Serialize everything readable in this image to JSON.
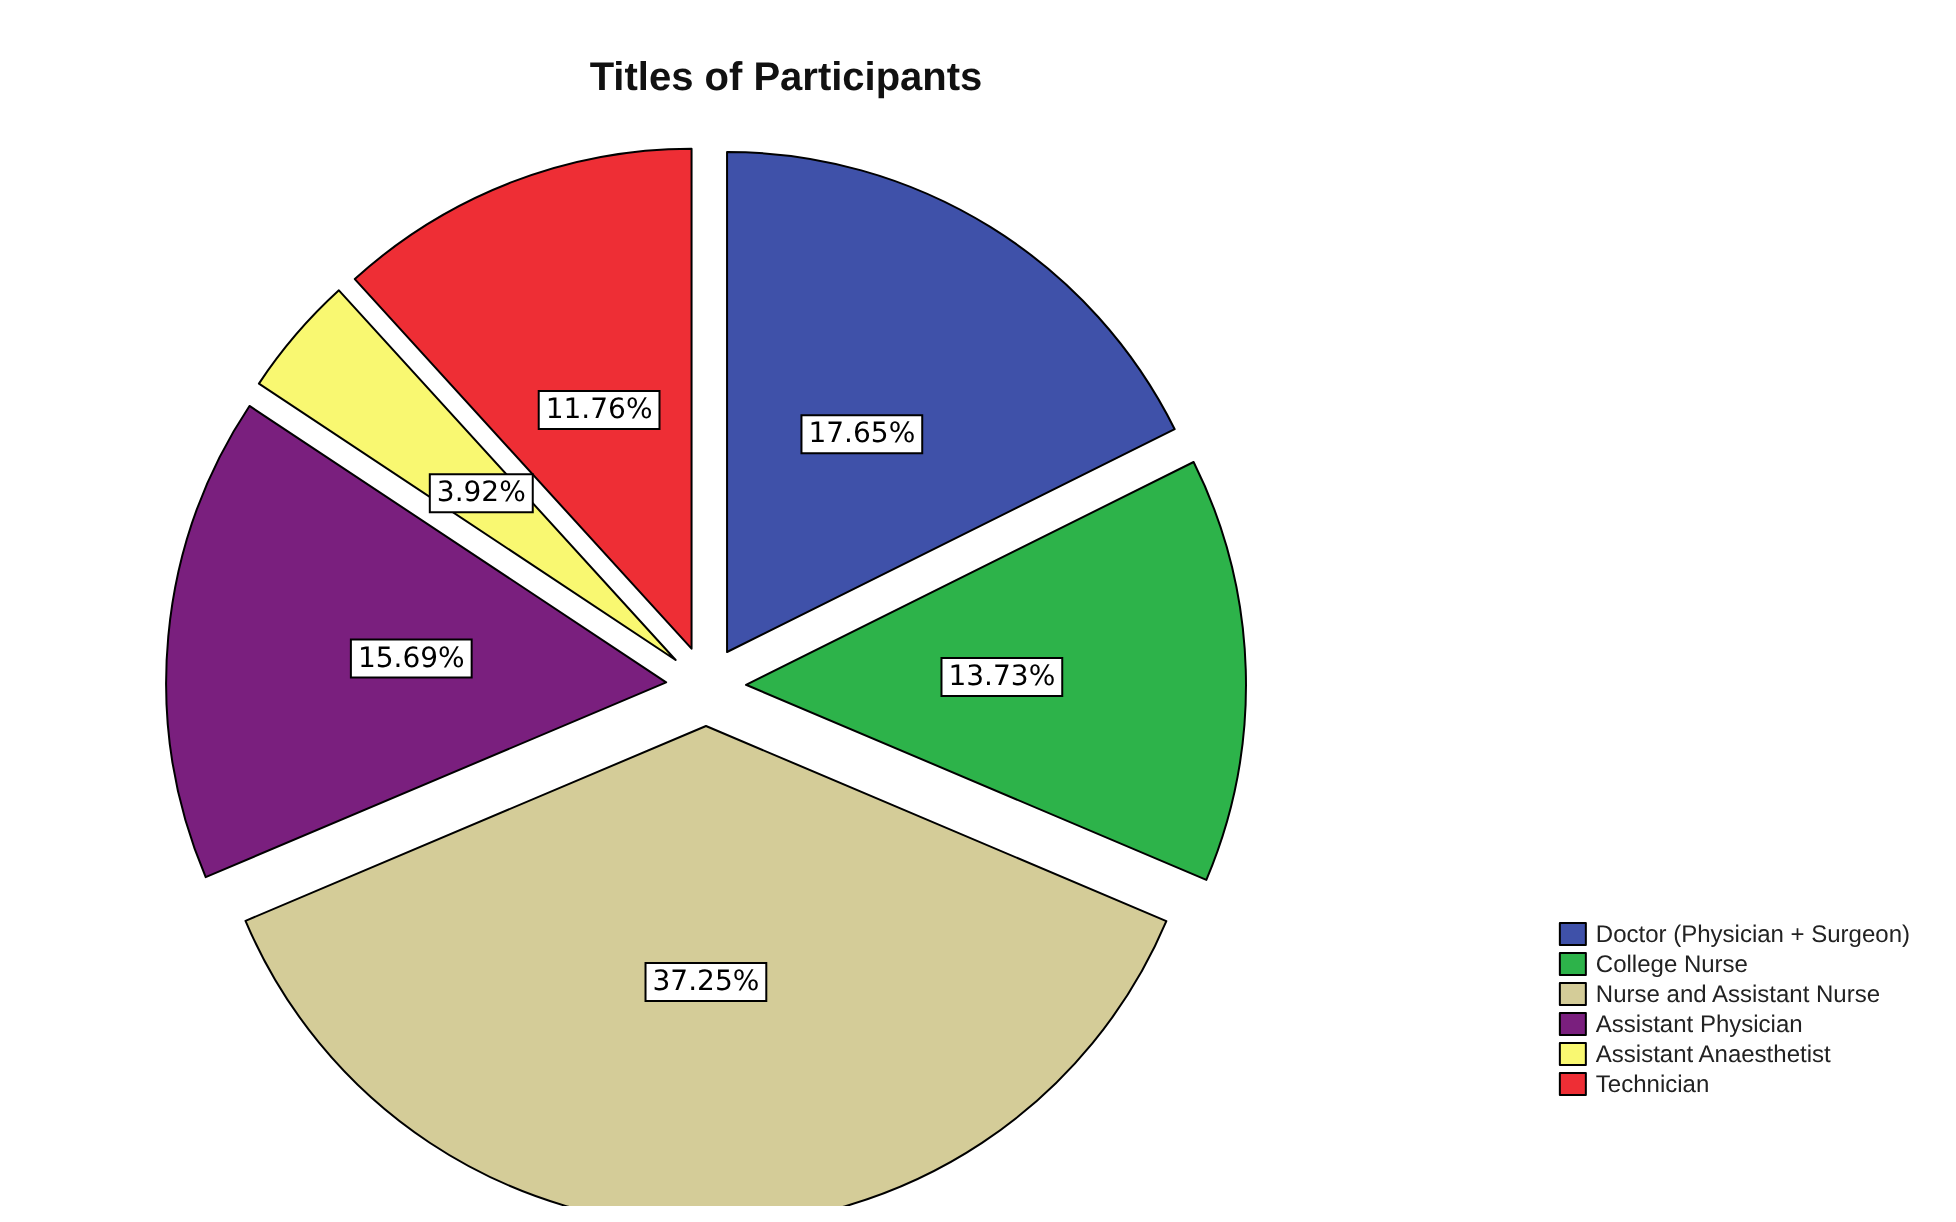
{
  "chart_data": {
    "type": "pie",
    "title": "Titles of Participants",
    "categories": [
      "Doctor (Physician + Surgeon)",
      "College Nurse",
      "Nurse and Assistant Nurse",
      "Assistant Physician",
      "Assistant Anaesthetist",
      "Technician"
    ],
    "values": [
      17.65,
      13.73,
      37.25,
      15.69,
      3.92,
      11.76
    ],
    "value_labels": [
      "17.65%",
      "13.73%",
      "37.25%",
      "15.69%",
      "3.92%",
      "11.76%"
    ],
    "colors": [
      "#3f51a9",
      "#2db34a",
      "#d4cc98",
      "#7a1f7e",
      "#f9f871",
      "#ee2e35"
    ],
    "legend": "bottom right"
  }
}
